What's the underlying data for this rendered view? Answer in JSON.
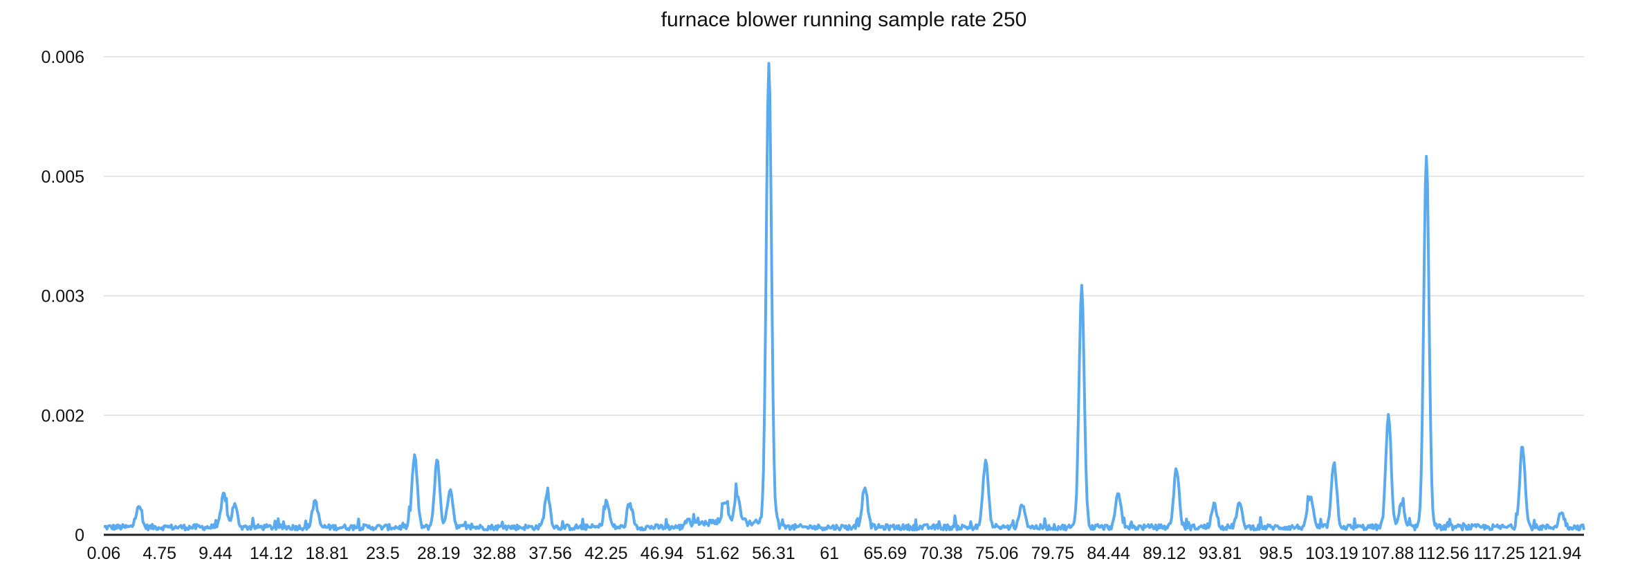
{
  "chart_data": {
    "type": "line",
    "title": "furnace blower running sample rate 250",
    "xlabel": "",
    "ylabel": "",
    "x_tick_labels": [
      "0.06",
      "4.75",
      "9.44",
      "14.12",
      "18.81",
      "23.5",
      "28.19",
      "32.88",
      "37.56",
      "42.25",
      "46.94",
      "51.62",
      "56.31",
      "61",
      "65.69",
      "70.38",
      "75.06",
      "79.75",
      "84.44",
      "89.12",
      "93.81",
      "98.5",
      "103.19",
      "107.88",
      "112.56",
      "117.25",
      "121.94"
    ],
    "y_tick_labels": [
      "0",
      "0.002",
      "0.003",
      "0.005",
      "0.006"
    ],
    "y_tick_values": [
      0,
      0.0015,
      0.003,
      0.0045,
      0.006
    ],
    "xlim": [
      0.06,
      125
    ],
    "ylim": [
      0,
      0.006
    ],
    "grid": true,
    "legend": "none",
    "colors": {
      "line": "#5aaaf0",
      "grid": "#dedede",
      "axis": "#222222"
    },
    "baseline": 6e-05,
    "peaks": [
      {
        "x": 3.0,
        "y": 0.00034
      },
      {
        "x": 10.2,
        "y": 0.00048
      },
      {
        "x": 11.1,
        "y": 0.00034
      },
      {
        "x": 17.9,
        "y": 0.0004
      },
      {
        "x": 26.3,
        "y": 0.00096
      },
      {
        "x": 28.2,
        "y": 0.0009
      },
      {
        "x": 29.3,
        "y": 0.00055
      },
      {
        "x": 37.5,
        "y": 0.00049
      },
      {
        "x": 42.5,
        "y": 0.00038
      },
      {
        "x": 44.5,
        "y": 0.00033
      },
      {
        "x": 52.5,
        "y": 0.00036
      },
      {
        "x": 53.5,
        "y": 0.00042
      },
      {
        "x": 56.2,
        "y": 0.0058
      },
      {
        "x": 64.3,
        "y": 0.00058
      },
      {
        "x": 74.5,
        "y": 0.0009
      },
      {
        "x": 77.6,
        "y": 0.00036
      },
      {
        "x": 82.6,
        "y": 0.00308
      },
      {
        "x": 85.7,
        "y": 0.00048
      },
      {
        "x": 90.6,
        "y": 0.0008
      },
      {
        "x": 93.8,
        "y": 0.00035
      },
      {
        "x": 95.9,
        "y": 0.00036
      },
      {
        "x": 101.9,
        "y": 0.00046
      },
      {
        "x": 103.9,
        "y": 0.00085
      },
      {
        "x": 108.5,
        "y": 0.00147
      },
      {
        "x": 109.6,
        "y": 0.00035
      },
      {
        "x": 111.7,
        "y": 0.00474
      },
      {
        "x": 119.8,
        "y": 0.0011
      },
      {
        "x": 123.1,
        "y": 0.00025
      }
    ]
  }
}
